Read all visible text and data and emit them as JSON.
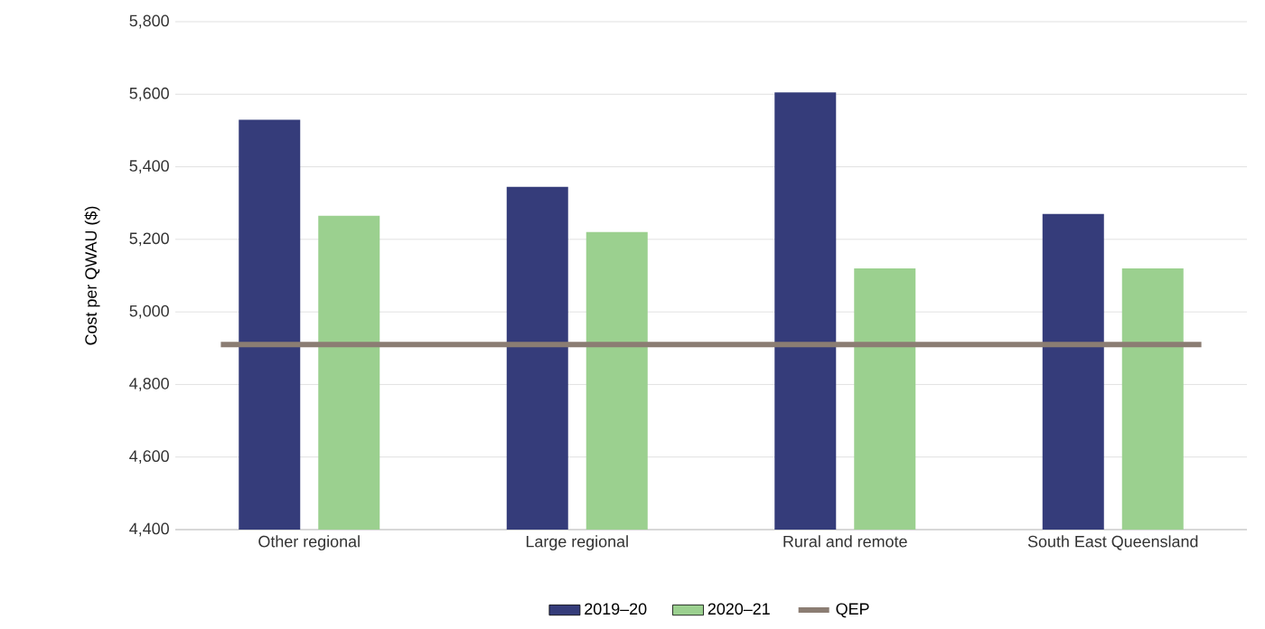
{
  "chart_data": {
    "type": "bar",
    "ylabel": "Cost per QWAU ($)",
    "categories": [
      "Other regional",
      "Large regional",
      "Rural and remote",
      "South East Queensland"
    ],
    "series": [
      {
        "name": "2019–20",
        "color": "#353c7a",
        "values": [
          5530,
          5345,
          5605,
          5270
        ]
      },
      {
        "name": "2020–21",
        "color": "#9bd08f",
        "values": [
          5265,
          5220,
          5120,
          5120
        ]
      }
    ],
    "ref_lines": [
      {
        "axis": "y",
        "value": 4910,
        "label": "QEP",
        "color": "#8b7d73"
      }
    ],
    "ylim": [
      4400,
      5800
    ],
    "yticks": [
      {
        "value": 4400,
        "label": "4,400"
      },
      {
        "value": 4600,
        "label": "4,600"
      },
      {
        "value": 4800,
        "label": "4,800"
      },
      {
        "value": 5000,
        "label": "5,000"
      },
      {
        "value": 5200,
        "label": "5,200"
      },
      {
        "value": 5400,
        "label": "5,400"
      },
      {
        "value": 5600,
        "label": "5,600"
      },
      {
        "value": 5800,
        "label": "5,800"
      }
    ],
    "grid": "y",
    "legend": "bottom"
  }
}
